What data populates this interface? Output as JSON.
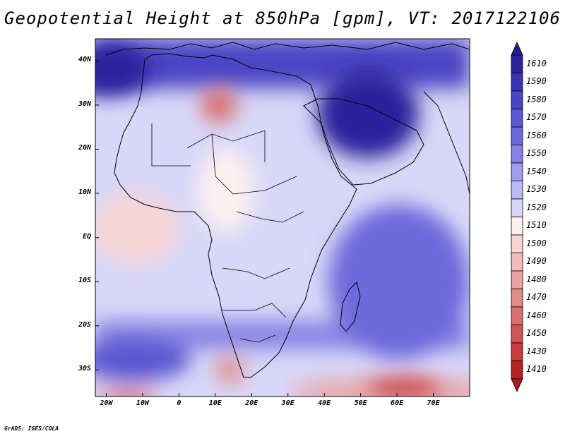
{
  "title": "Geopotential Height at 850hPa [gpm], VT: 2017122106",
  "credit": "GrADS: IGES/COLA",
  "axes": {
    "lat_labels": [
      {
        "text": "40N",
        "lat": 40
      },
      {
        "text": "30N",
        "lat": 30
      },
      {
        "text": "20N",
        "lat": 20
      },
      {
        "text": "10N",
        "lat": 10
      },
      {
        "text": "EQ",
        "lat": 0
      },
      {
        "text": "10S",
        "lat": -10
      },
      {
        "text": "20S",
        "lat": -20
      },
      {
        "text": "30S",
        "lat": -30
      }
    ],
    "lon_labels": [
      {
        "text": "20W",
        "lon": -20
      },
      {
        "text": "10W",
        "lon": -10
      },
      {
        "text": "0",
        "lon": 0
      },
      {
        "text": "10E",
        "lon": 10
      },
      {
        "text": "20E",
        "lon": 20
      },
      {
        "text": "30E",
        "lon": 30
      },
      {
        "text": "40E",
        "lon": 40
      },
      {
        "text": "50E",
        "lon": 50
      },
      {
        "text": "60E",
        "lon": 60
      },
      {
        "text": "70E",
        "lon": 70
      }
    ],
    "lon_range": [
      -23,
      80
    ],
    "lat_range": [
      -36,
      45
    ]
  },
  "colorbar": {
    "levels": [
      {
        "label": "1610",
        "color": "#2a239c"
      },
      {
        "label": "1590",
        "color": "#3a34b2"
      },
      {
        "label": "1580",
        "color": "#4b44c4"
      },
      {
        "label": "1570",
        "color": "#5c56d0"
      },
      {
        "label": "1560",
        "color": "#6e69dc"
      },
      {
        "label": "1550",
        "color": "#8682e4"
      },
      {
        "label": "1540",
        "color": "#a09deb"
      },
      {
        "label": "1530",
        "color": "#bcbaf2"
      },
      {
        "label": "1520",
        "color": "#d8d7f8"
      },
      {
        "label": "1510",
        "color": "#fdf0f0"
      },
      {
        "label": "1500",
        "color": "#f8d6d6"
      },
      {
        "label": "1490",
        "color": "#f2bcbc"
      },
      {
        "label": "1480",
        "color": "#eaa2a2"
      },
      {
        "label": "1470",
        "color": "#e28a8a"
      },
      {
        "label": "1460",
        "color": "#d97070"
      },
      {
        "label": "1450",
        "color": "#cf5656"
      },
      {
        "label": "1430",
        "color": "#c43c3c"
      },
      {
        "label": "1410",
        "color": "#b52424"
      }
    ],
    "top_arrow_color": "#23208e",
    "bottom_arrow_color": "#a81c1c"
  },
  "field": {
    "background_color": "#d8d7f8",
    "regions": [
      {
        "name": "north-atlantic-high",
        "color": "#2a239c",
        "lon": -20,
        "lat": 38,
        "rx": 12,
        "ry": 6
      },
      {
        "name": "arabia-high",
        "color": "#2a239c",
        "lon": 52,
        "lat": 28,
        "rx": 14,
        "ry": 10
      },
      {
        "name": "sahara-low",
        "color": "#d97070",
        "lon": 11,
        "lat": 30,
        "rx": 5,
        "ry": 4
      },
      {
        "name": "west-africa-ridge",
        "color": "#f8d6d6",
        "lon": -12,
        "lat": 2,
        "rx": 12,
        "ry": 8
      },
      {
        "name": "southern-ocean-low",
        "color": "#c43c3c",
        "lon": 62,
        "lat": -34,
        "rx": 10,
        "ry": 2
      },
      {
        "name": "south-atlantic-trough",
        "color": "#e28a8a",
        "lon": 14,
        "lat": -30,
        "rx": 4,
        "ry": 3
      }
    ]
  }
}
